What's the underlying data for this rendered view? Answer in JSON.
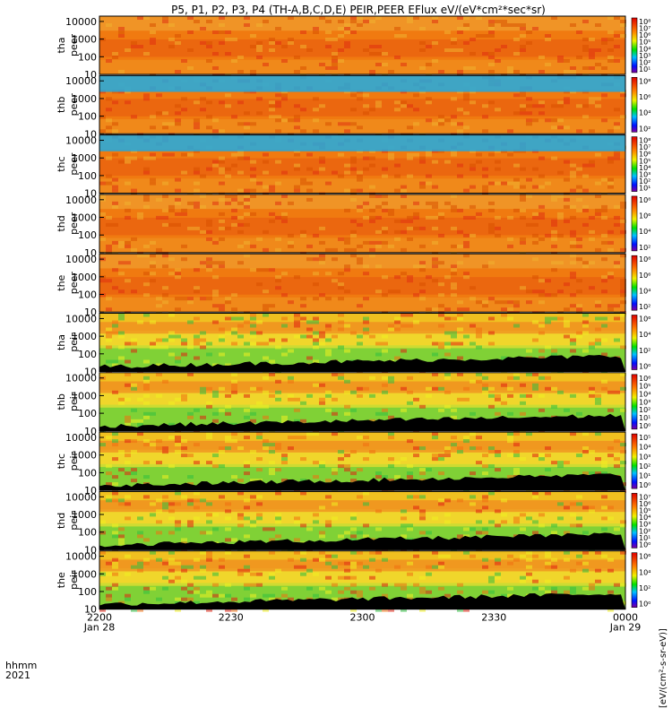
{
  "title": "P5, P1, P2, P3, P4 (TH-A,B,C,D,E) PEIR,PEER EFlux eV/(eV*cm²*sec*sr)",
  "time_axis": {
    "label_line1": "hhmm",
    "label_line2": "2021",
    "ticks": [
      {
        "label": "2200",
        "date": "Jan 28"
      },
      {
        "label": "2230",
        "date": ""
      },
      {
        "label": "2300",
        "date": ""
      },
      {
        "label": "2330",
        "date": ""
      },
      {
        "label": "0000",
        "date": "Jan 29"
      }
    ]
  },
  "colorbar_unit_label": "[eV/(cm²-s-sr-eV)]",
  "colors": {
    "background": "#ffffff",
    "saturated_low": "#000000",
    "spectrum_base": "#f07a10"
  },
  "chart_data": {
    "type": "heatmap",
    "x_range": [
      "2021-01-28 22:00",
      "2021-01-29 00:00"
    ],
    "y_scale": "log",
    "y_range": [
      10,
      20000
    ],
    "y_ticks": [
      "10000",
      "1000",
      "100",
      "10"
    ],
    "panels": [
      {
        "probe": "tha",
        "species": "peer",
        "label1": "tha",
        "label2": "peer",
        "cbar_ticks": [
          "10⁸",
          "10⁷",
          "10⁶",
          "10⁵",
          "10⁴",
          "10³",
          "10²",
          "10¹"
        ]
      },
      {
        "probe": "thb",
        "species": "peer",
        "label1": "thb",
        "label2": "peer",
        "cbar_ticks": [
          "10⁸",
          "10⁶",
          "10⁴",
          "10²"
        ]
      },
      {
        "probe": "thc",
        "species": "peer",
        "label1": "thc",
        "label2": "peer",
        "cbar_ticks": [
          "10⁸",
          "10⁷",
          "10⁶",
          "10⁵",
          "10⁴",
          "10³",
          "10²",
          "10¹"
        ]
      },
      {
        "probe": "thd",
        "species": "peer",
        "label1": "thd",
        "label2": "peer",
        "cbar_ticks": [
          "10⁸",
          "10⁶",
          "10⁴",
          "10²"
        ]
      },
      {
        "probe": "the",
        "species": "peer",
        "label1": "the",
        "label2": "peer",
        "cbar_ticks": [
          "10⁸",
          "10⁶",
          "10⁴",
          "10²"
        ]
      },
      {
        "probe": "tha",
        "species": "peir",
        "label1": "tha",
        "label2": "peir",
        "cbar_ticks": [
          "10⁶",
          "10⁴",
          "10²",
          "10⁰"
        ]
      },
      {
        "probe": "thb",
        "species": "peir",
        "label1": "thb",
        "label2": "peir",
        "cbar_ticks": [
          "10⁶",
          "10⁵",
          "10⁴",
          "10³",
          "10²",
          "10¹",
          "10⁰"
        ]
      },
      {
        "probe": "thc",
        "species": "peir",
        "label1": "thc",
        "label2": "peir",
        "cbar_ticks": [
          "10⁵",
          "10⁴",
          "10³",
          "10²",
          "10¹",
          "10⁰"
        ]
      },
      {
        "probe": "thd",
        "species": "peir",
        "label1": "thd",
        "label2": "peir",
        "cbar_ticks": [
          "10⁷",
          "10⁶",
          "10⁵",
          "10⁴",
          "10³",
          "10²",
          "10¹",
          "10⁰"
        ]
      },
      {
        "probe": "the",
        "species": "peir",
        "label1": "the",
        "label2": "peir",
        "cbar_ticks": [
          "10⁶",
          "10⁴",
          "10²",
          "10⁰"
        ]
      }
    ]
  }
}
